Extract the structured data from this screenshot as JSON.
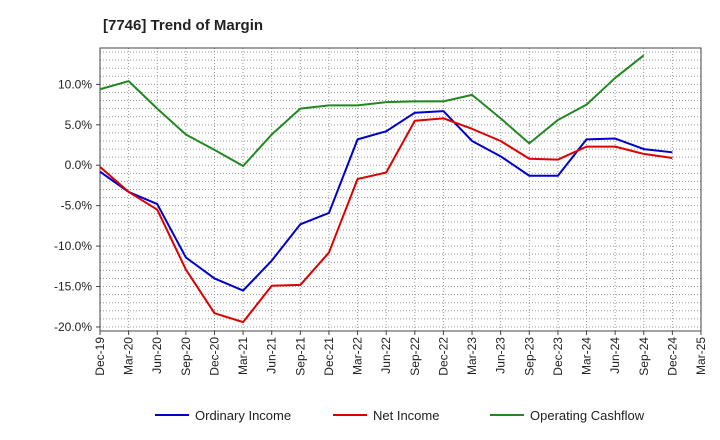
{
  "title": "[7746]  Trend of Margin",
  "chart_data": {
    "type": "line",
    "title": "[7746]  Trend of Margin",
    "xlabel": "",
    "ylabel": "",
    "ylim": [
      -20.5,
      14.5
    ],
    "yticks": [
      10,
      5,
      0,
      -5,
      -10,
      -15,
      -20
    ],
    "ytick_labels": [
      "10.0%",
      "5.0%",
      "0.0%",
      "-5.0%",
      "-10.0%",
      "-15.0%",
      "-20.0%"
    ],
    "x": [
      "Dec-19",
      "Mar-20",
      "Jun-20",
      "Sep-20",
      "Dec-20",
      "Mar-21",
      "Jun-21",
      "Sep-21",
      "Dec-21",
      "Mar-22",
      "Jun-22",
      "Sep-22",
      "Dec-22",
      "Mar-23",
      "Jun-23",
      "Sep-23",
      "Dec-23",
      "Mar-24",
      "Jun-24",
      "Sep-24",
      "Dec-24",
      "Mar-25"
    ],
    "grid": true,
    "legend_position": "bottom",
    "series": [
      {
        "name": "Ordinary Income",
        "color": "#0000cc",
        "values": [
          -0.8,
          -3.3,
          -4.8,
          -11.4,
          -14.0,
          -15.5,
          -11.8,
          -7.3,
          -5.9,
          3.2,
          4.2,
          6.5,
          6.7,
          3.0,
          1.1,
          -1.3,
          -1.3,
          3.2,
          3.3,
          2.0,
          1.6,
          null
        ]
      },
      {
        "name": "Net Income",
        "color": "#dd0000",
        "values": [
          -0.2,
          -3.3,
          -5.5,
          -12.9,
          -18.3,
          -19.4,
          -14.9,
          -14.8,
          -10.8,
          -1.7,
          -0.9,
          5.5,
          5.8,
          4.5,
          3.0,
          0.8,
          0.7,
          2.3,
          2.3,
          1.4,
          0.9,
          null
        ]
      },
      {
        "name": "Operating Cashflow",
        "color": "#228822",
        "values": [
          9.4,
          10.4,
          7.0,
          3.8,
          1.9,
          -0.1,
          3.8,
          7.0,
          7.4,
          7.4,
          7.8,
          7.9,
          7.9,
          8.7,
          5.8,
          2.7,
          5.6,
          7.5,
          10.8,
          13.6,
          null,
          null
        ]
      }
    ]
  }
}
